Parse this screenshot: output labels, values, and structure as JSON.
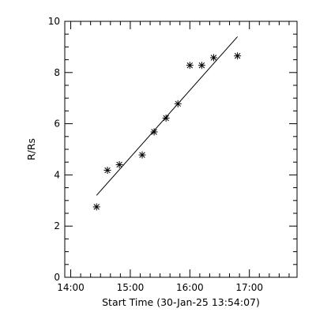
{
  "chart_data": {
    "type": "scatter",
    "title": "",
    "xlabel": "Start Time (30-Jan-25 13:54:07)",
    "ylabel": "R/Rs",
    "x_ticks": [
      "14:00",
      "15:00",
      "16:00",
      "17:00"
    ],
    "y_ticks": [
      "0",
      "2",
      "4",
      "6",
      "8",
      "10"
    ],
    "xlim": [
      "13:54",
      "17:48"
    ],
    "ylim": [
      0,
      10
    ],
    "grid": false,
    "marker": "asterisk",
    "series": [
      {
        "points": [
          {
            "x": "14:26",
            "y": 2.75
          },
          {
            "x": "14:37",
            "y": 4.18
          },
          {
            "x": "14:49",
            "y": 4.4
          },
          {
            "x": "15:12",
            "y": 4.78
          },
          {
            "x": "15:24",
            "y": 5.68
          },
          {
            "x": "15:36",
            "y": 6.22
          },
          {
            "x": "15:48",
            "y": 6.78
          },
          {
            "x": "16:00",
            "y": 8.28
          },
          {
            "x": "16:12",
            "y": 8.28
          },
          {
            "x": "16:24",
            "y": 8.58
          },
          {
            "x": "16:48",
            "y": 8.65
          }
        ]
      }
    ],
    "fit_line": {
      "start": {
        "x": "14:26",
        "y": 3.2
      },
      "end": {
        "x": "16:48",
        "y": 9.4
      }
    }
  },
  "colors": {
    "background": "#ffffff",
    "foreground": "#000000"
  }
}
